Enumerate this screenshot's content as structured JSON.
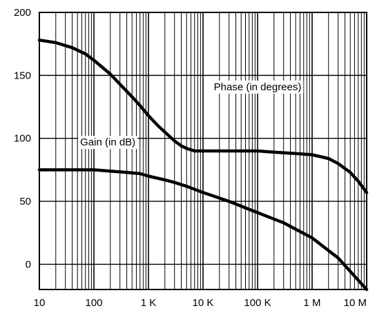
{
  "colors": {
    "background": "#ffffff",
    "foreground": "#000000"
  },
  "chart_data": {
    "type": "line",
    "title": "",
    "xlabel": "",
    "ylabel": "",
    "x_scale": "log",
    "xlim": [
      10,
      10000000
    ],
    "ylim": [
      -20,
      200
    ],
    "grid": true,
    "x_ticks": [
      {
        "value": 10,
        "label": "10"
      },
      {
        "value": 100,
        "label": "100"
      },
      {
        "value": 1000,
        "label": "1 K"
      },
      {
        "value": 10000,
        "label": "10 K"
      },
      {
        "value": 100000,
        "label": "100 K"
      },
      {
        "value": 1000000,
        "label": "1 M"
      },
      {
        "value": 10000000,
        "label": "10 M"
      }
    ],
    "y_ticks": [
      {
        "value": 0,
        "label": "0"
      },
      {
        "value": 50,
        "label": "50"
      },
      {
        "value": 100,
        "label": "100"
      },
      {
        "value": 150,
        "label": "150"
      },
      {
        "value": 200,
        "label": "200"
      }
    ],
    "series": [
      {
        "name": "Phase (in degrees)",
        "points": [
          [
            10,
            178
          ],
          [
            20,
            176
          ],
          [
            40,
            172
          ],
          [
            70,
            167
          ],
          [
            100,
            162
          ],
          [
            200,
            151
          ],
          [
            300,
            143
          ],
          [
            500,
            133
          ],
          [
            700,
            126
          ],
          [
            1000,
            118
          ],
          [
            1500,
            110
          ],
          [
            2000,
            105
          ],
          [
            3000,
            98
          ],
          [
            4000,
            94
          ],
          [
            5000,
            92
          ],
          [
            7000,
            90
          ],
          [
            10000,
            90
          ],
          [
            20000,
            90
          ],
          [
            50000,
            90
          ],
          [
            100000,
            90
          ],
          [
            200000,
            89
          ],
          [
            500000,
            88
          ],
          [
            1000000,
            87
          ],
          [
            2000000,
            84
          ],
          [
            3000000,
            80
          ],
          [
            5000000,
            73
          ],
          [
            7000000,
            66
          ],
          [
            10000000,
            57
          ]
        ]
      },
      {
        "name": "Gain (in dB)",
        "points": [
          [
            10,
            75
          ],
          [
            30,
            75
          ],
          [
            100,
            75
          ],
          [
            200,
            74
          ],
          [
            400,
            73
          ],
          [
            700,
            72
          ],
          [
            1000,
            70
          ],
          [
            2000,
            67
          ],
          [
            3000,
            65
          ],
          [
            5000,
            62
          ],
          [
            10000,
            57
          ],
          [
            30000,
            50
          ],
          [
            100000,
            41
          ],
          [
            300000,
            33
          ],
          [
            1000000,
            21
          ],
          [
            3000000,
            5
          ],
          [
            10000000,
            -20
          ]
        ]
      }
    ],
    "annotations": [
      {
        "text": "Phase (in degrees)",
        "x": 100000,
        "y": 141
      },
      {
        "text": "Gain (in dB)",
        "x": 180,
        "y": 97
      }
    ]
  }
}
